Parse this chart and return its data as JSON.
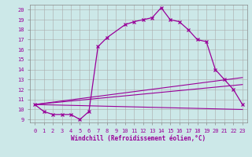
{
  "xlabel": "Windchill (Refroidissement éolien,°C)",
  "bg_color": "#cce8e8",
  "line_color": "#990099",
  "grid_color": "#aaaaaa",
  "xlim": [
    -0.5,
    23.5
  ],
  "ylim": [
    8.7,
    20.5
  ],
  "xticks": [
    0,
    1,
    2,
    3,
    4,
    5,
    6,
    7,
    8,
    9,
    10,
    11,
    12,
    13,
    14,
    15,
    16,
    17,
    18,
    19,
    20,
    21,
    22,
    23
  ],
  "yticks": [
    9,
    10,
    11,
    12,
    13,
    14,
    15,
    16,
    17,
    18,
    19,
    20
  ],
  "main_line": {
    "x": [
      0,
      1,
      2,
      3,
      4,
      5,
      6,
      7,
      8,
      10,
      11,
      12,
      13,
      14,
      15,
      16,
      17,
      18,
      19,
      20,
      21,
      22,
      23
    ],
    "y": [
      10.5,
      9.8,
      9.5,
      9.5,
      9.5,
      9.0,
      9.8,
      16.3,
      17.2,
      18.5,
      18.8,
      19.0,
      19.2,
      20.2,
      19.0,
      18.8,
      18.0,
      17.0,
      16.8,
      14.0,
      13.0,
      12.0,
      10.5
    ]
  },
  "flat_lines": [
    {
      "x": [
        0,
        23
      ],
      "y": [
        10.5,
        10.0
      ]
    },
    {
      "x": [
        0,
        23
      ],
      "y": [
        10.5,
        12.5
      ]
    },
    {
      "x": [
        0,
        23
      ],
      "y": [
        10.5,
        13.2
      ]
    }
  ],
  "tick_fontsize": 5,
  "xlabel_fontsize": 5.5,
  "spine_color": "#888888"
}
